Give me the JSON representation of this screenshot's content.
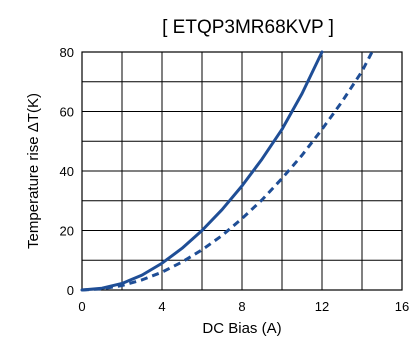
{
  "chart_data": {
    "type": "line",
    "title": "[ ETQP3MR68KVP ]",
    "xlabel": "DC Bias (A)",
    "ylabel": "Temperature rise ΔT(K)",
    "xlim": [
      0,
      16
    ],
    "ylim": [
      0,
      80
    ],
    "xticks": [
      "0",
      "4",
      "8",
      "12",
      "16"
    ],
    "yticks": [
      "0",
      "20",
      "40",
      "60",
      "80"
    ],
    "grid": true,
    "colors": {
      "series": "#1f4e96",
      "grid": "#000000"
    },
    "series": [
      {
        "style": "solid",
        "x": [
          0,
          1,
          2,
          3,
          4,
          5,
          6,
          7,
          8,
          9,
          10,
          11,
          12
        ],
        "y": [
          0,
          0.6,
          2.2,
          5,
          9,
          14,
          20,
          27,
          35,
          44,
          54,
          66,
          80
        ]
      },
      {
        "style": "dashed",
        "x": [
          0,
          1,
          2,
          3,
          4,
          5,
          6,
          7,
          8,
          9,
          10,
          11,
          12,
          13,
          14,
          14.5
        ],
        "y": [
          0,
          0.4,
          1.5,
          3.4,
          6,
          9.4,
          13.5,
          18.3,
          24,
          30.3,
          37.5,
          45.3,
          54,
          63.3,
          73.5,
          80
        ]
      }
    ]
  }
}
